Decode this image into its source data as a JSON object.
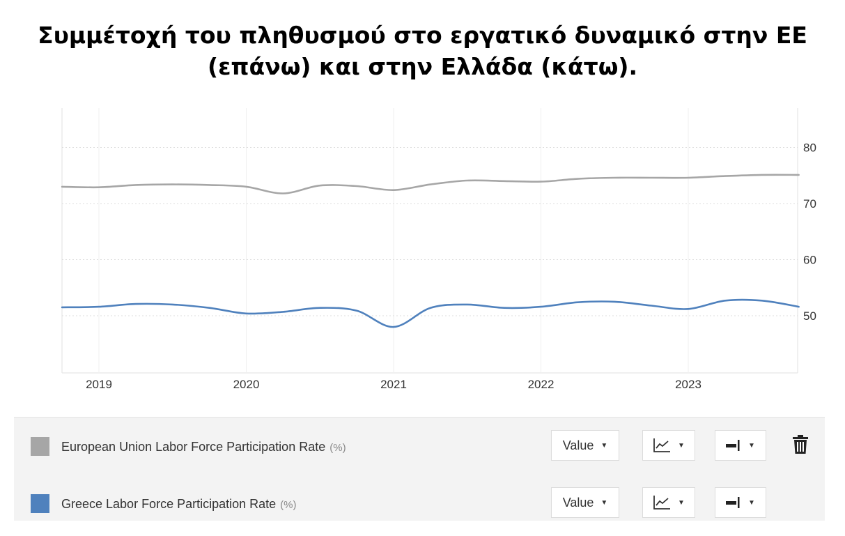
{
  "title": {
    "line1": "Συμμέτοχή του πληθυσμού στο εργατικό δυναμικό στην ΕΕ",
    "line2": "(επάνω) και στην Ελλάδα (κάτω)."
  },
  "chart_data": {
    "type": "line",
    "title": "Συμμέτοχή του πληθυσμού στο εργατικό δυναμικό στην ΕΕ (επάνω) και στην Ελλάδα (κάτω).",
    "x_ticks": [
      "2019",
      "2020",
      "2021",
      "2022",
      "2023"
    ],
    "y_ticks": [
      50,
      60,
      70,
      80
    ],
    "ylim": [
      40,
      87
    ],
    "xlim": [
      2018.75,
      2023.75
    ],
    "y_axis_position": "right",
    "grid": true,
    "legend_placement": "bottom",
    "series": [
      {
        "name": "European Union Labor Force Participation Rate",
        "unit": "(%)",
        "color": "#a6a6a6",
        "x": [
          2018.75,
          2019.0,
          2019.25,
          2019.5,
          2019.75,
          2020.0,
          2020.25,
          2020.5,
          2020.75,
          2021.0,
          2021.25,
          2021.5,
          2021.75,
          2022.0,
          2022.25,
          2022.5,
          2022.75,
          2023.0,
          2023.25,
          2023.5,
          2023.75
        ],
        "values": [
          73.0,
          72.9,
          73.3,
          73.4,
          73.3,
          73.0,
          71.8,
          73.2,
          73.1,
          72.4,
          73.4,
          74.1,
          74.0,
          73.9,
          74.4,
          74.6,
          74.6,
          74.6,
          74.9,
          75.1,
          75.1
        ]
      },
      {
        "name": "Greece Labor Force Participation Rate",
        "unit": "(%)",
        "color": "#4f81bd",
        "x": [
          2018.75,
          2019.0,
          2019.25,
          2019.5,
          2019.75,
          2020.0,
          2020.25,
          2020.5,
          2020.75,
          2021.0,
          2021.25,
          2021.5,
          2021.75,
          2022.0,
          2022.25,
          2022.5,
          2022.75,
          2023.0,
          2023.25,
          2023.5,
          2023.75
        ],
        "values": [
          51.5,
          51.6,
          52.1,
          52.0,
          51.4,
          50.4,
          50.7,
          51.4,
          50.9,
          48.0,
          51.4,
          52.0,
          51.4,
          51.6,
          52.4,
          52.5,
          51.8,
          51.2,
          52.7,
          52.7,
          51.6
        ]
      }
    ]
  },
  "legend": {
    "rows": [
      {
        "label": "European Union Labor Force Participation Rate",
        "unit": "(%)",
        "color": "#a6a6a6",
        "value_label": "Value"
      },
      {
        "label": "Greece Labor Force Participation Rate",
        "unit": "(%)",
        "color": "#4f81bd",
        "value_label": "Value"
      }
    ],
    "icons": [
      "line-chart-icon",
      "axis-icon",
      "trash-icon"
    ]
  }
}
